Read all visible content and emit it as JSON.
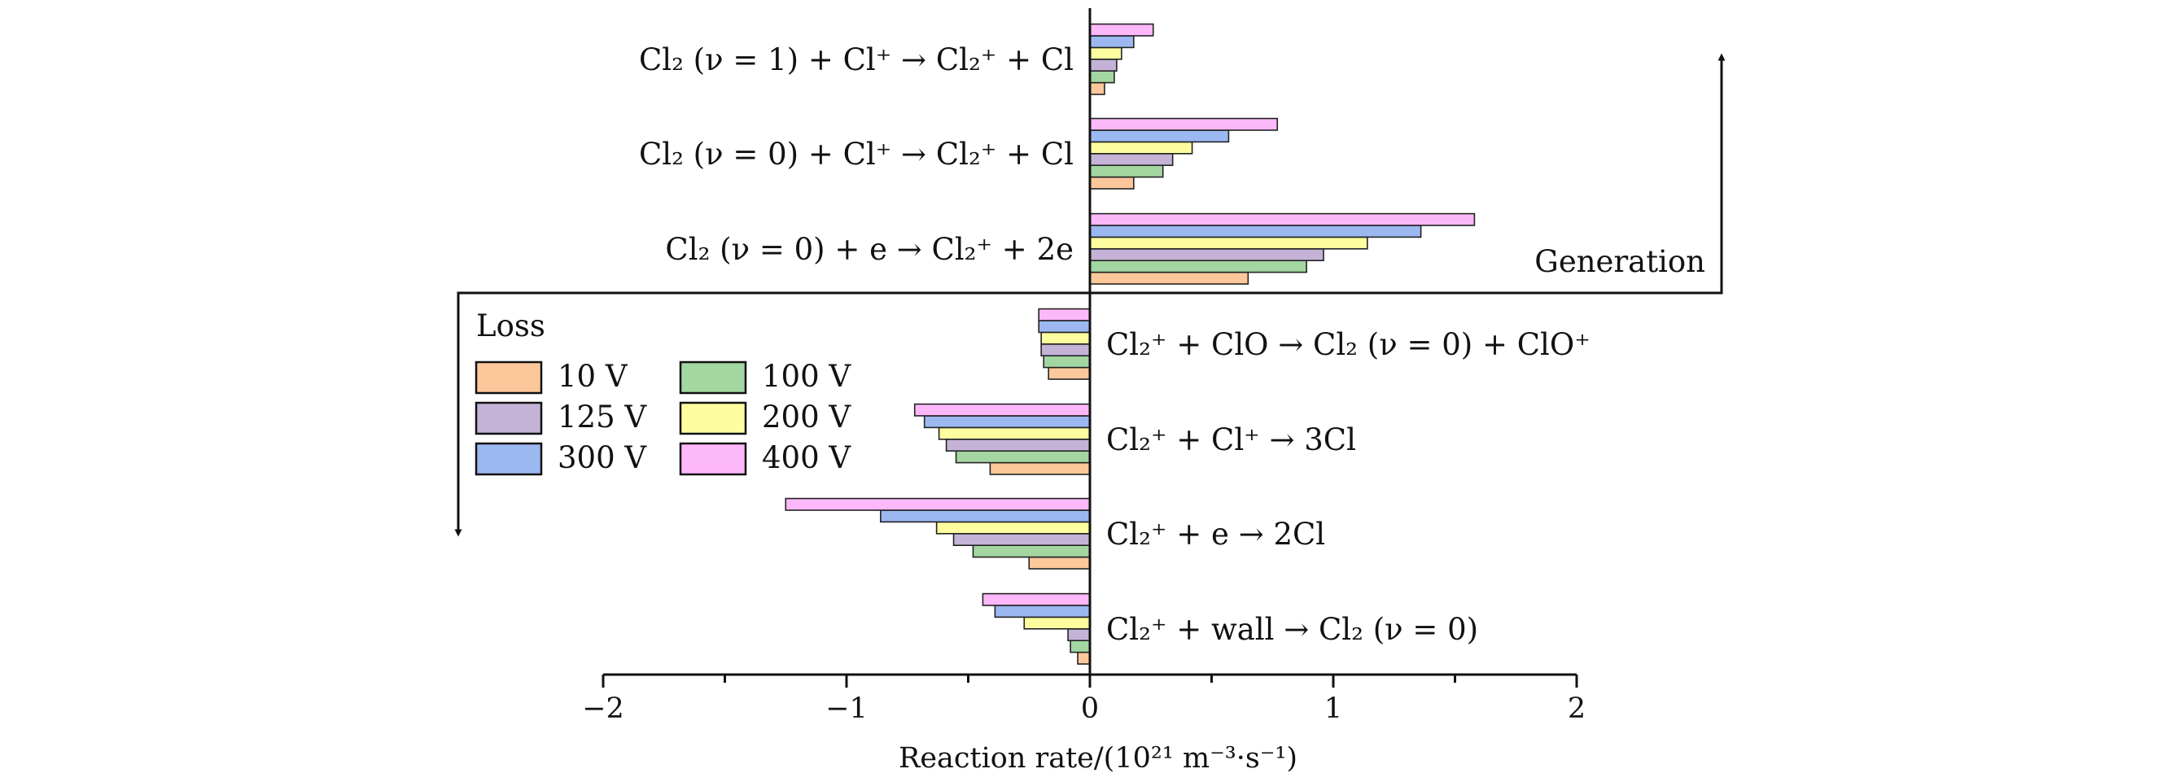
{
  "chart_data": {
    "type": "bar",
    "orientation": "horizontal",
    "title": "",
    "xlabel": "Reaction rate/(10²¹ m⁻³·s⁻¹)",
    "xlim": [
      -2,
      2
    ],
    "x_ticks": [
      -2,
      -1,
      0,
      1,
      2
    ],
    "x_tick_labels": [
      "−2",
      "−1",
      "0",
      "1",
      "2"
    ],
    "grid": false,
    "legend_title": "Loss",
    "legend_position": "left",
    "region_labels": {
      "generation": "Generation",
      "loss": "Loss"
    },
    "series": [
      {
        "name": "10 V",
        "color": "#fcc89b"
      },
      {
        "name": "100 V",
        "color": "#a3d6a0"
      },
      {
        "name": "125 V",
        "color": "#c4b3d6"
      },
      {
        "name": "200 V",
        "color": "#fdfd9f"
      },
      {
        "name": "300 V",
        "color": "#9bb8f1"
      },
      {
        "name": "400 V",
        "color": "#fdb8fa"
      }
    ],
    "categories": [
      {
        "group": "generation",
        "label": "Cl₂ (ν = 1) + Cl⁺ → Cl₂⁺ + Cl",
        "values": [
          0.06,
          0.1,
          0.11,
          0.13,
          0.18,
          0.26
        ]
      },
      {
        "group": "generation",
        "label": "Cl₂ (ν = 0) + Cl⁺ → Cl₂⁺ + Cl",
        "values": [
          0.18,
          0.3,
          0.34,
          0.42,
          0.57,
          0.77
        ]
      },
      {
        "group": "generation",
        "label": "Cl₂ (ν = 0) + e → Cl₂⁺ + 2e",
        "values": [
          0.65,
          0.89,
          0.96,
          1.14,
          1.36,
          1.58
        ]
      },
      {
        "group": "loss",
        "label": "Cl₂⁺ + ClO → Cl₂ (ν = 0) + ClO⁺",
        "values": [
          -0.17,
          -0.19,
          -0.2,
          -0.2,
          -0.21,
          -0.21
        ]
      },
      {
        "group": "loss",
        "label": "Cl₂⁺ + Cl⁺ → 3Cl",
        "values": [
          -0.41,
          -0.55,
          -0.59,
          -0.62,
          -0.68,
          -0.72
        ]
      },
      {
        "group": "loss",
        "label": "Cl₂⁺ + e → 2Cl",
        "values": [
          -0.25,
          -0.48,
          -0.56,
          -0.63,
          -0.86,
          -1.25
        ]
      },
      {
        "group": "loss",
        "label": "Cl₂⁺ + wall → Cl₂ (ν = 0)",
        "values": [
          -0.05,
          -0.08,
          -0.09,
          -0.27,
          -0.39,
          -0.44
        ]
      }
    ]
  }
}
